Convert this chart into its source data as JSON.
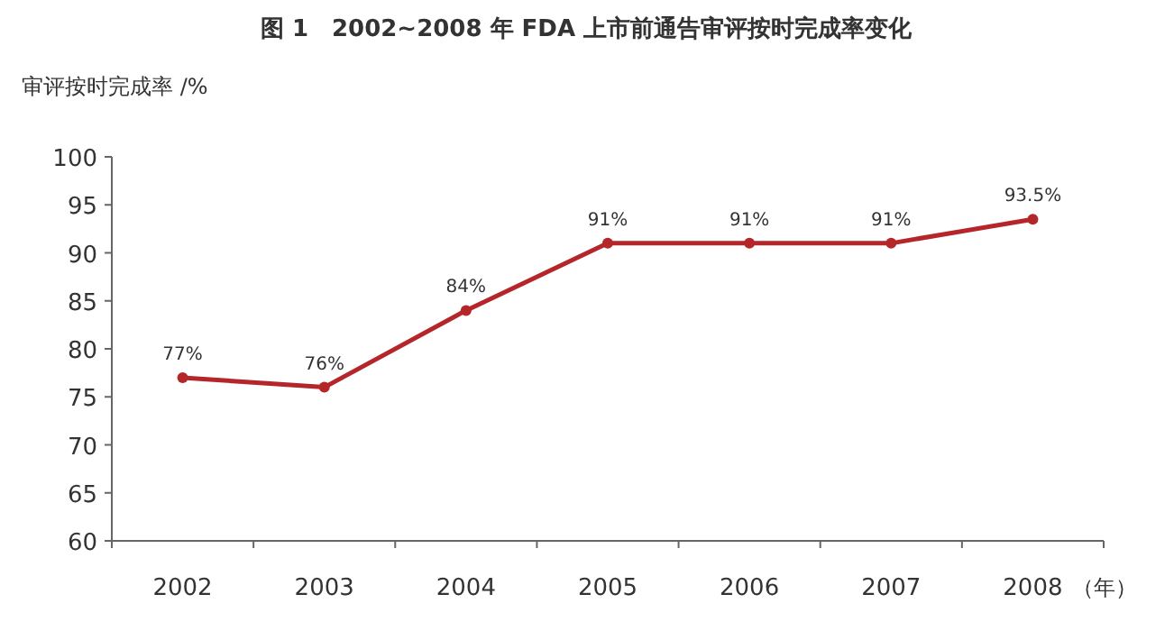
{
  "chart_data": {
    "type": "line",
    "title": "图 1　2002~2008 年 FDA 上市前通告审评按时完成率变化",
    "ylabel": "审评按时完成率 /%",
    "xlabel": "（年）",
    "categories": [
      "2002",
      "2003",
      "2004",
      "2005",
      "2006",
      "2007",
      "2008"
    ],
    "series": [
      {
        "color": "#b5262b",
        "values": [
          77,
          76,
          84,
          91,
          91,
          91,
          93.5
        ],
        "value_labels": [
          "77%",
          "76%",
          "84%",
          "91%",
          "91%",
          "91%",
          "93.5%"
        ]
      }
    ],
    "ylim": [
      60,
      100
    ],
    "yticks": [
      60,
      65,
      70,
      75,
      80,
      85,
      90,
      95,
      100
    ],
    "grid": false,
    "marker": "circle",
    "line_style": "solid"
  }
}
